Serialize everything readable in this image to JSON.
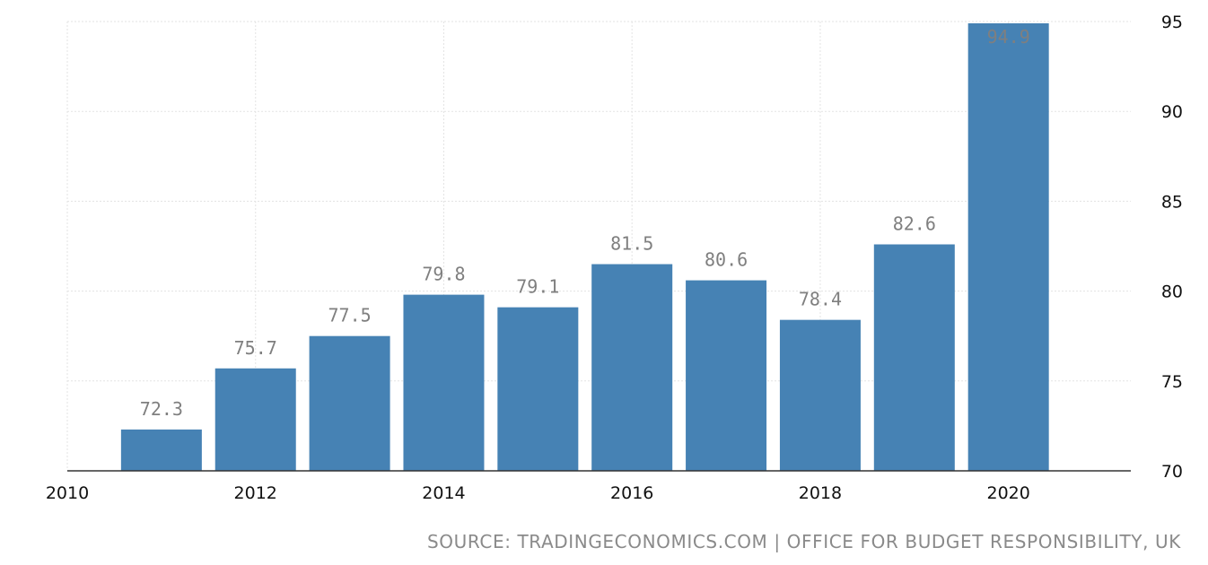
{
  "chart_data": {
    "type": "bar",
    "categories": [
      "2011",
      "2012",
      "2013",
      "2014",
      "2015",
      "2016",
      "2017",
      "2018",
      "2019",
      "2020"
    ],
    "values": [
      72.3,
      75.7,
      77.5,
      79.8,
      79.1,
      81.5,
      80.6,
      78.4,
      82.6,
      94.9
    ],
    "value_labels": [
      "72.3",
      "75.7",
      "77.5",
      "79.8",
      "79.1",
      "81.5",
      "80.6",
      "78.4",
      "82.6",
      "94.9"
    ],
    "title": "",
    "xlabel": "",
    "ylabel": "",
    "xlim": [
      2010,
      2021.3
    ],
    "ylim": [
      70,
      95
    ],
    "x_ticks": [
      "2010",
      "2012",
      "2014",
      "2016",
      "2018",
      "2020"
    ],
    "y_ticks": [
      "70",
      "75",
      "80",
      "85",
      "90",
      "95"
    ],
    "y_axis_position": "right",
    "grid": true,
    "legend": "none",
    "bar_color": "#4682b4"
  },
  "source": "SOURCE: TRADINGECONOMICS.COM | OFFICE FOR BUDGET RESPONSIBILITY, UK"
}
